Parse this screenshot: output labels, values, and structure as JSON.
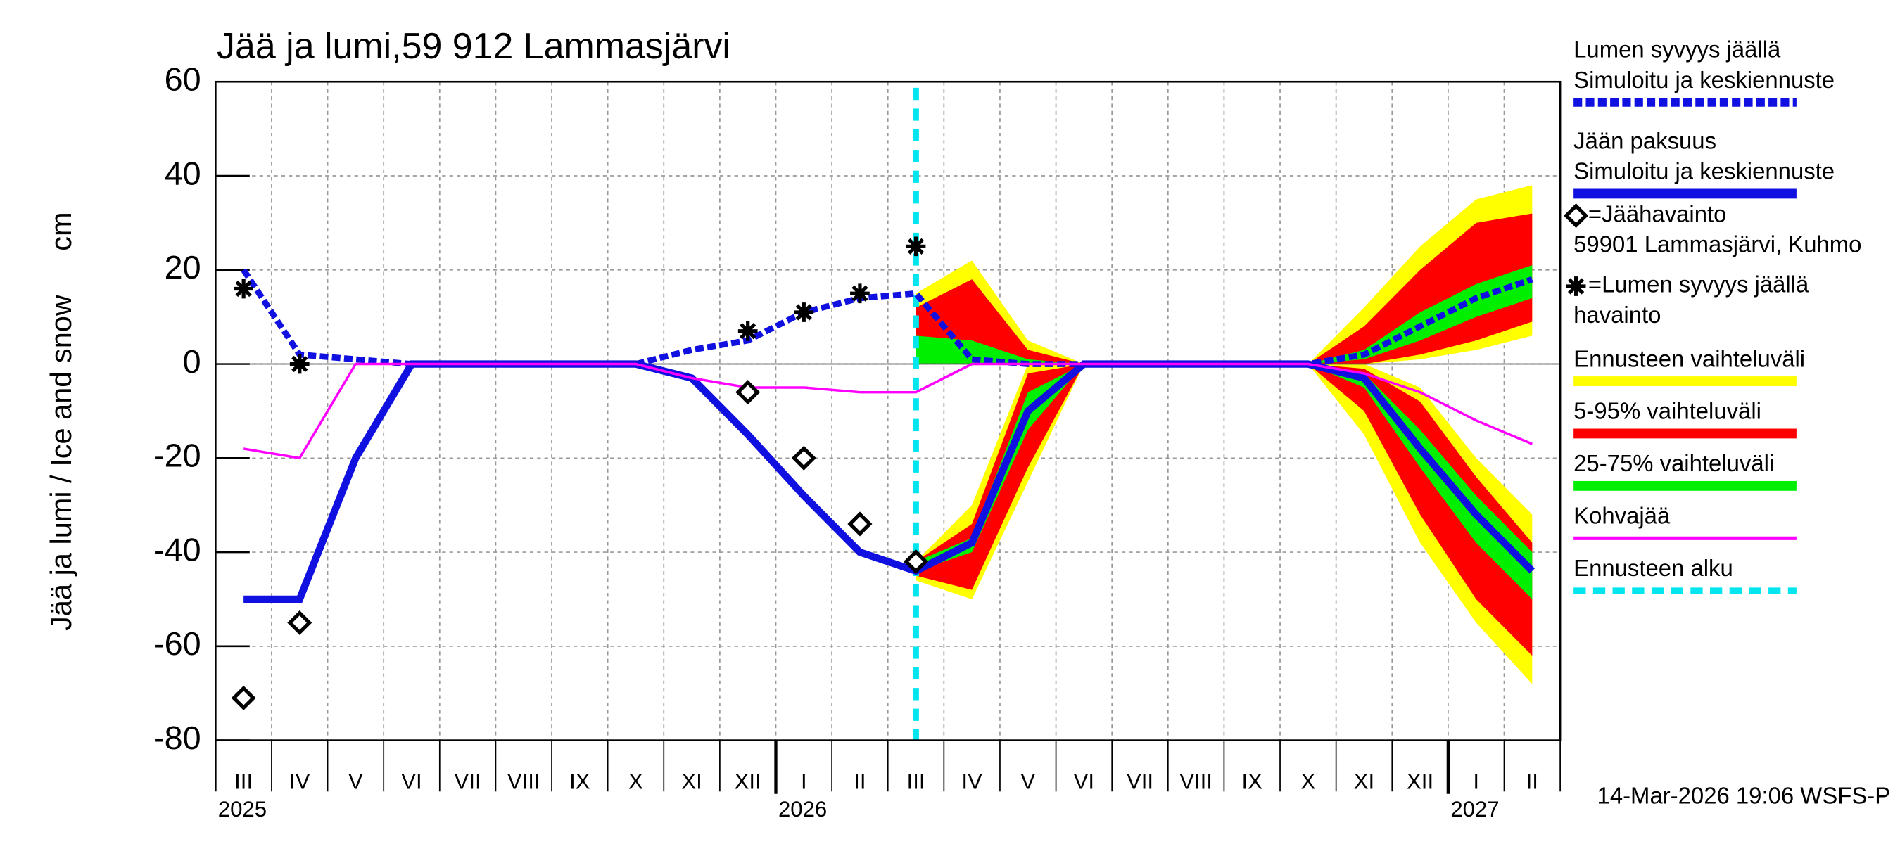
{
  "chart_data": {
    "type": "ice-snow",
    "title": "Jää ja lumi,59 912 Lammasjärvi",
    "y_label": "Jää ja lumi / Ice and snow",
    "y_unit": "cm",
    "footer": "14-Mar-2026 19:06 WSFS-P",
    "ylim": [
      -80,
      60
    ],
    "yticks": [
      -80,
      -60,
      -40,
      -20,
      0,
      20,
      40,
      60
    ],
    "grid": true,
    "categories": [
      "III",
      "IV",
      "V",
      "VI",
      "VII",
      "VIII",
      "IX",
      "X",
      "XI",
      "XII",
      "I",
      "II",
      "III",
      "IV",
      "V",
      "VI",
      "VII",
      "VIII",
      "IX",
      "X",
      "XI",
      "XII",
      "I",
      "II"
    ],
    "years": [
      "2025",
      null,
      null,
      null,
      null,
      null,
      null,
      null,
      null,
      null,
      "2026",
      null,
      null,
      null,
      null,
      null,
      null,
      null,
      null,
      null,
      null,
      null,
      "2027",
      null
    ],
    "series": [
      {
        "name": [
          "Lumen syvyys jäällä",
          "Simuloitu ja keskiennuste"
        ],
        "color": "#1010e0",
        "style": "dashed",
        "values": [
          20,
          2,
          1,
          0,
          0,
          0,
          0,
          0,
          3,
          5,
          11,
          14,
          15,
          1,
          0,
          0,
          0,
          0,
          0,
          0,
          2,
          8,
          14,
          18
        ]
      },
      {
        "name": [
          "Jään paksuus",
          "Simuloitu ja keskiennuste"
        ],
        "color": "#1010e0",
        "style": "solid",
        "values": [
          -50,
          -50,
          -20,
          0,
          0,
          0,
          0,
          0,
          -3,
          -15,
          -28,
          -40,
          -44,
          -38,
          -10,
          0,
          0,
          0,
          0,
          0,
          -3,
          -18,
          -32,
          -44
        ]
      },
      {
        "name": [
          "Kohvajää"
        ],
        "color": "#ff00ff",
        "style": "thin",
        "values": [
          -18,
          -20,
          0,
          0,
          0,
          0,
          0,
          0,
          -3,
          -5,
          -5,
          -6,
          -6,
          0,
          0,
          0,
          0,
          0,
          0,
          0,
          -2,
          -6,
          -12,
          -17
        ]
      }
    ],
    "observations": [
      {
        "name": [
          "=Jäähavainto",
          "59901 Lammasjärvi, Kuhmo"
        ],
        "marker": "diamond",
        "values": [
          -71,
          -55,
          null,
          null,
          null,
          null,
          null,
          null,
          null,
          -6,
          -20,
          -34,
          -42,
          null,
          null,
          null,
          null,
          null,
          null,
          null,
          null,
          null,
          null,
          null
        ]
      },
      {
        "name": [
          "=Lumen syvyys jäällä",
          "havainto"
        ],
        "marker": "star",
        "values": [
          16,
          0,
          null,
          null,
          null,
          null,
          null,
          null,
          null,
          7,
          11,
          15,
          25,
          null,
          null,
          null,
          null,
          null,
          null,
          null,
          null,
          null,
          null,
          null
        ]
      }
    ],
    "bands": [
      {
        "name": [
          "Ennusteen vaihteluväli"
        ],
        "color": "#ffff00",
        "snow_low": [
          null,
          null,
          null,
          null,
          null,
          null,
          null,
          null,
          null,
          null,
          null,
          null,
          0,
          0,
          0,
          0,
          0,
          0,
          0,
          0,
          0,
          1,
          3,
          6
        ],
        "snow_high": [
          null,
          null,
          null,
          null,
          null,
          null,
          null,
          null,
          null,
          null,
          null,
          null,
          15,
          22,
          5,
          0,
          0,
          0,
          0,
          0,
          12,
          25,
          35,
          38
        ],
        "ice_low": [
          null,
          null,
          null,
          null,
          null,
          null,
          null,
          null,
          null,
          null,
          null,
          null,
          -46,
          -50,
          -25,
          0,
          0,
          0,
          0,
          0,
          -15,
          -38,
          -55,
          -68
        ],
        "ice_high": [
          null,
          null,
          null,
          null,
          null,
          null,
          null,
          null,
          null,
          null,
          null,
          null,
          -42,
          -30,
          0,
          0,
          0,
          0,
          0,
          0,
          0,
          -5,
          -20,
          -32
        ]
      },
      {
        "name": [
          "5-95% vaihteluväli"
        ],
        "color": "#ff0000",
        "snow_low": [
          null,
          null,
          null,
          null,
          null,
          null,
          null,
          null,
          null,
          null,
          null,
          null,
          0,
          0,
          0,
          0,
          0,
          0,
          0,
          0,
          0,
          2,
          5,
          9
        ],
        "snow_high": [
          null,
          null,
          null,
          null,
          null,
          null,
          null,
          null,
          null,
          null,
          null,
          null,
          12,
          18,
          3,
          0,
          0,
          0,
          0,
          0,
          8,
          20,
          30,
          32
        ],
        "ice_low": [
          null,
          null,
          null,
          null,
          null,
          null,
          null,
          null,
          null,
          null,
          null,
          null,
          -45,
          -48,
          -22,
          0,
          0,
          0,
          0,
          0,
          -10,
          -32,
          -50,
          -62
        ],
        "ice_high": [
          null,
          null,
          null,
          null,
          null,
          null,
          null,
          null,
          null,
          null,
          null,
          null,
          -42,
          -34,
          -2,
          0,
          0,
          0,
          0,
          0,
          -1,
          -8,
          -24,
          -38
        ]
      },
      {
        "name": [
          "25-75% vaihteluväli"
        ],
        "color": "#00ee00",
        "snow_low": [
          null,
          null,
          null,
          null,
          null,
          null,
          null,
          null,
          null,
          null,
          null,
          null,
          0,
          0,
          0,
          0,
          0,
          0,
          0,
          0,
          1,
          5,
          10,
          14
        ],
        "snow_high": [
          null,
          null,
          null,
          null,
          null,
          null,
          null,
          null,
          null,
          null,
          null,
          null,
          6,
          5,
          1,
          0,
          0,
          0,
          0,
          0,
          3,
          11,
          17,
          21
        ],
        "ice_low": [
          null,
          null,
          null,
          null,
          null,
          null,
          null,
          null,
          null,
          null,
          null,
          null,
          -44,
          -40,
          -14,
          0,
          0,
          0,
          0,
          0,
          -5,
          -22,
          -38,
          -50
        ],
        "ice_high": [
          null,
          null,
          null,
          null,
          null,
          null,
          null,
          null,
          null,
          null,
          null,
          null,
          -42,
          -37,
          -6,
          0,
          0,
          0,
          0,
          0,
          -2,
          -14,
          -28,
          -40
        ]
      }
    ],
    "forecast_start": {
      "name": [
        "Ennusteen alku"
      ],
      "color": "#00e5ee"
    }
  }
}
